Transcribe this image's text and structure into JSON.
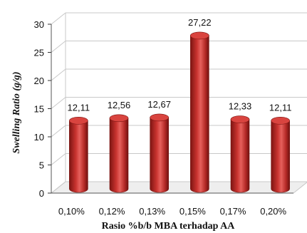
{
  "chart_data": {
    "type": "bar",
    "style": "3d-cylinder",
    "categories": [
      "0,10%",
      "0,12%",
      "0,13%",
      "0,15%",
      "0,17%",
      "0,20%"
    ],
    "values": [
      12.11,
      12.56,
      12.67,
      27.22,
      12.33,
      12.11
    ],
    "data_labels": [
      "12,11",
      "12,56",
      "12,67",
      "27,22",
      "12,33",
      "12,11"
    ],
    "xlabel": "Rasio %b/b MBA terhadap AA",
    "ylabel": "Swelling Ratio (g/g)",
    "ylim": [
      0,
      30
    ],
    "yticks": [
      0,
      5,
      10,
      15,
      20,
      25,
      30
    ],
    "grid": true,
    "legend": "none",
    "colors": {
      "bar_side": "#b52a27",
      "bar_top": "#d9443f",
      "bar_highlight": "#e6605c",
      "bar_shadow": "#7c1512",
      "grid": "#c8c8c8",
      "floor": "#eeeeee"
    }
  }
}
